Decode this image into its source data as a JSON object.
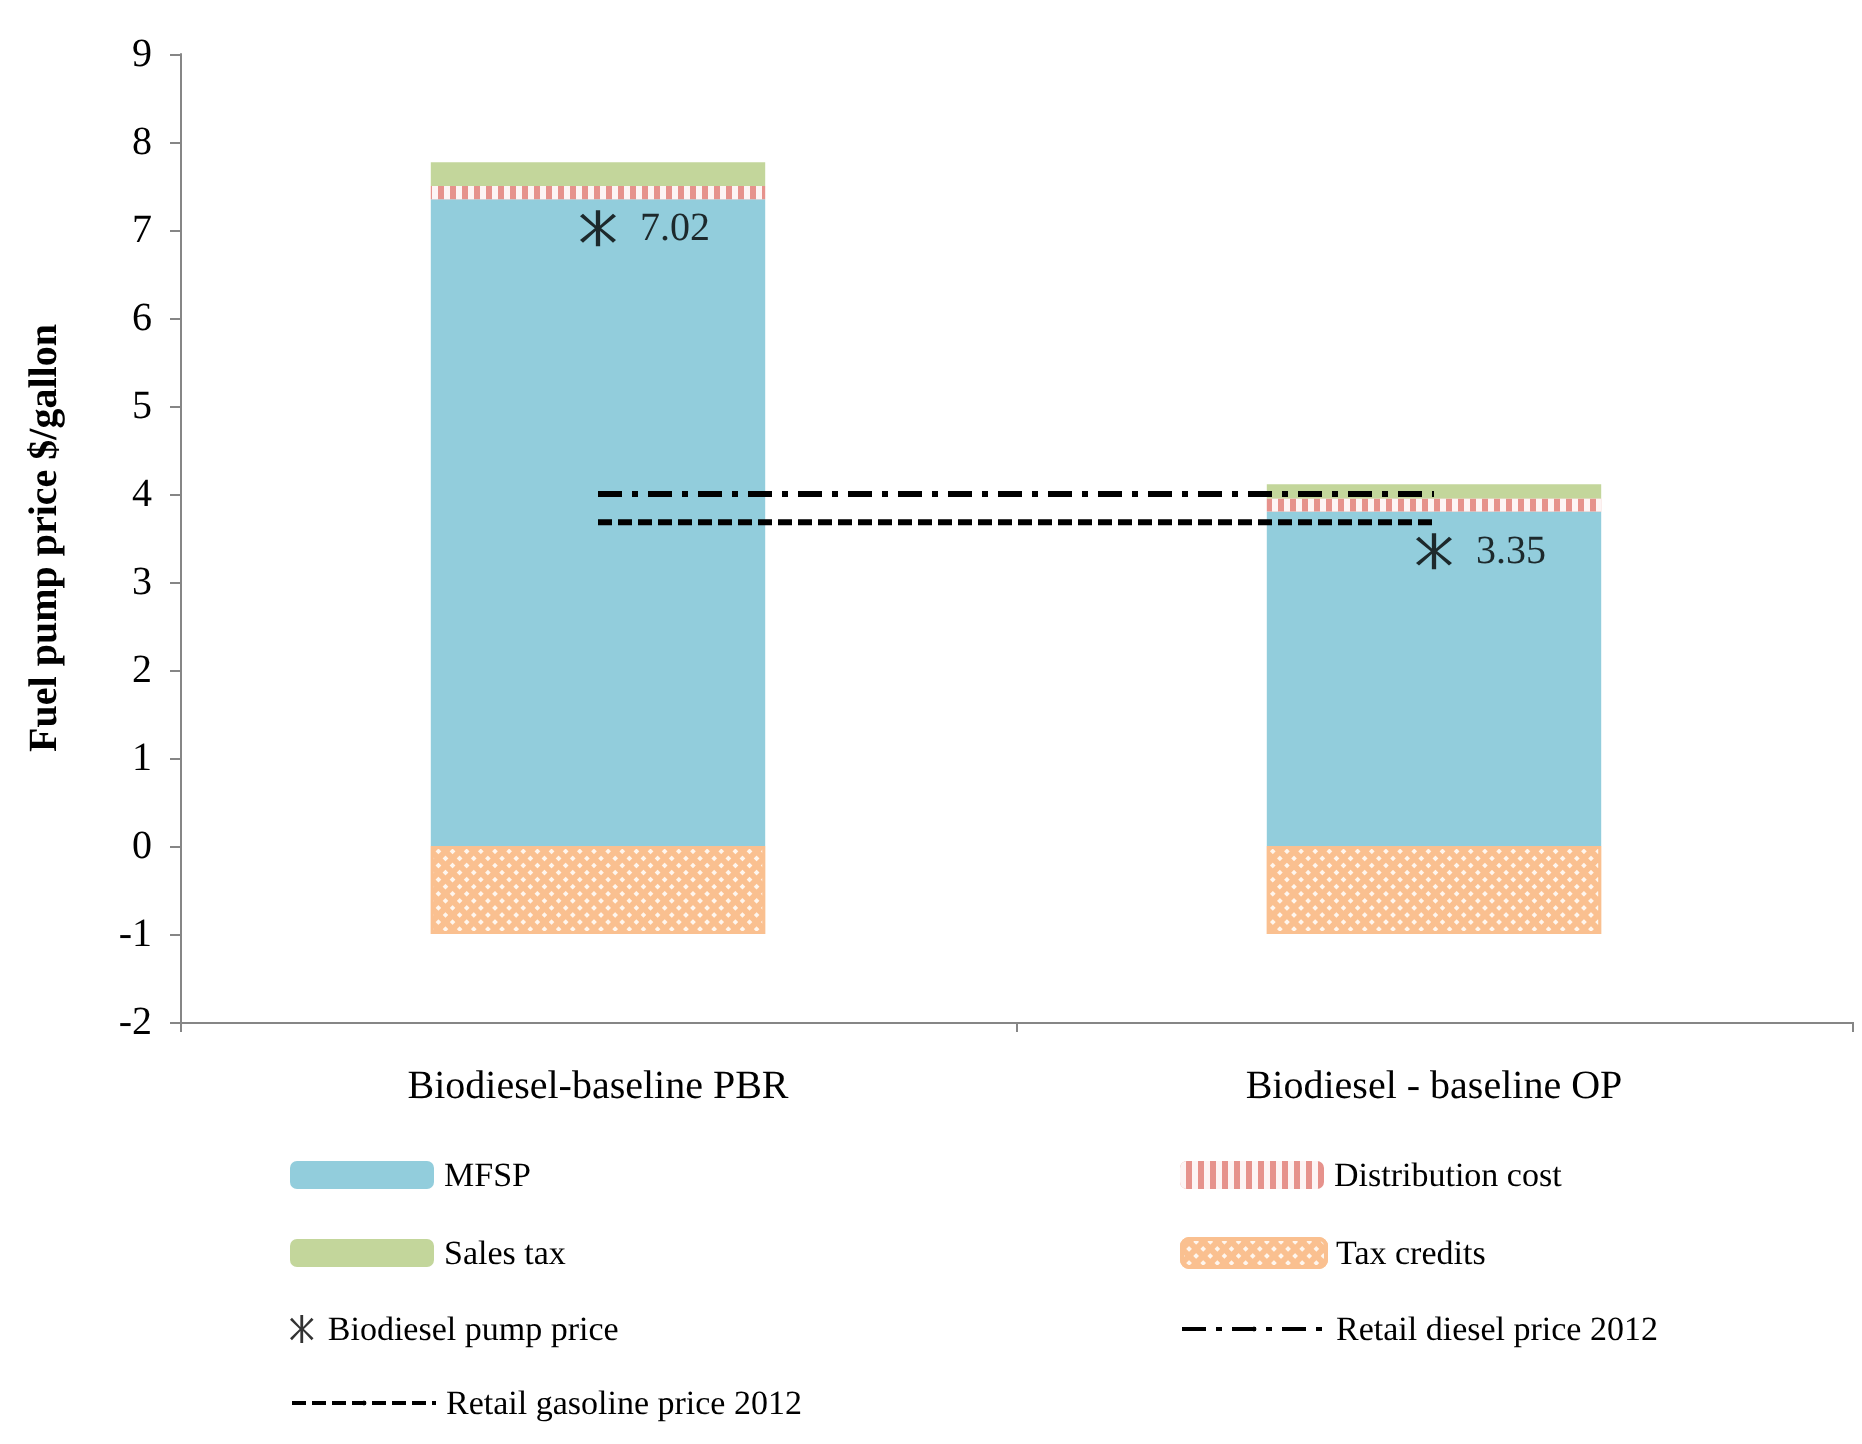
{
  "chart_data": {
    "type": "bar",
    "ylabel": "Fuel pump price $/gallon",
    "categories": [
      "Biodiesel-baseline PBR",
      "Biodiesel - baseline OP"
    ],
    "stacked": true,
    "series": [
      {
        "name": "MFSP",
        "color": "#92cddc",
        "values": [
          7.35,
          3.8
        ]
      },
      {
        "name": "Distribution cost",
        "color": "#e6928c",
        "values": [
          0.15,
          0.15
        ]
      },
      {
        "name": "Sales tax",
        "color": "#c3d69b",
        "values": [
          0.27,
          0.16
        ]
      },
      {
        "name": "Tax credits",
        "color": "#fac090",
        "values": [
          -1,
          -1
        ]
      },
      {
        "name": "Biodiesel pump price",
        "type": "scatter",
        "marker": "cross",
        "color": "#000000",
        "x": [
          "Biodiesel-baseline PBR",
          "Biodiesel - baseline OP"
        ],
        "values": [
          7.02,
          3.35
        ],
        "value_labels": [
          "7.02",
          "3.35"
        ]
      },
      {
        "name": "Retail diesel price 2012",
        "type": "line",
        "line_style": "dashdot",
        "marker": "none",
        "color": "#000000",
        "x": [
          "Biodiesel-baseline PBR",
          "Biodiesel - baseline OP"
        ],
        "values": [
          4.0,
          4.0
        ]
      },
      {
        "name": "Retail gasoline price 2012",
        "type": "line",
        "line_style": "dashed",
        "marker": "none",
        "color": "#000000",
        "x": [
          "Biodiesel-baseline PBR",
          "Biodiesel - baseline OP"
        ],
        "values": [
          3.68,
          3.68
        ]
      }
    ],
    "ylim": [
      -2,
      9
    ],
    "yticks": [
      -2,
      -1,
      0,
      1,
      2,
      3,
      4,
      5,
      6,
      7,
      8,
      9
    ],
    "grid": false,
    "legend": "bottom"
  }
}
